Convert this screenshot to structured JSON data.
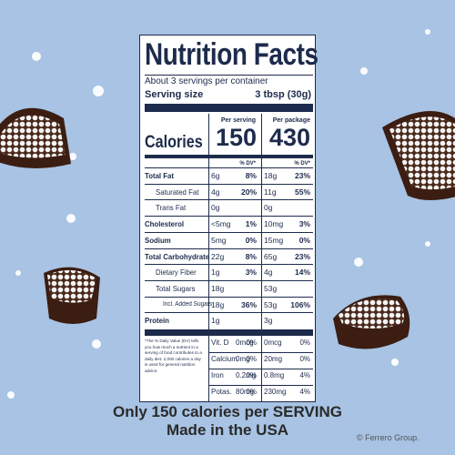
{
  "label": {
    "title": "Nutrition Facts",
    "servings": "About 3 servings per container",
    "serving_size_label": "Serving size",
    "serving_size": "3 tbsp (30g)",
    "per_serving": "Per serving",
    "per_package": "Per package",
    "calories_label": "Calories",
    "calories_serving": "150",
    "calories_package": "430",
    "dv_header": "% DV*",
    "rows": [
      {
        "name": "Total Fat",
        "serving": "6g",
        "serving_dv": "8%",
        "package": "18g",
        "package_dv": "23%",
        "items": [
          {
            "name": "Saturated Fat",
            "serving": "4g",
            "serving_dv": "20%",
            "package": "11g",
            "package_dv": "55%"
          },
          {
            "name": "Trans Fat",
            "serving": "0g",
            "serving_dv": null,
            "package": "0g",
            "package_dv": null
          }
        ]
      },
      {
        "name": "Cholesterol",
        "serving": "<5mg",
        "serving_dv": "1%",
        "package": "10mg",
        "package_dv": "3%"
      },
      {
        "name": "Sodium",
        "serving": "5mg",
        "serving_dv": "0%",
        "package": "15mg",
        "package_dv": "0%"
      },
      {
        "name": "Total Carbohydrate",
        "serving": "22g",
        "serving_dv": "8%",
        "package": "65g",
        "package_dv": "23%",
        "items": [
          {
            "name": "Dietary Fiber",
            "serving": "1g",
            "serving_dv": "3%",
            "package": "4g",
            "package_dv": "14%"
          },
          {
            "name": "Total Sugars",
            "serving": "18g",
            "serving_dv": null,
            "package": "53g",
            "package_dv": null,
            "items": [
              {
                "name": "Incl. Added Sugars",
                "serving": "18g",
                "serving_dv": "36%",
                "package": "53g",
                "package_dv": "106%"
              }
            ]
          }
        ]
      },
      {
        "name": "Protein",
        "serving": "1g",
        "serving_dv": null,
        "package": "3g",
        "package_dv": null
      }
    ],
    "footnote": "*The % Daily Value (DV) tells you how much a nutrient in a serving of food contributes to a daily diet. 2,000 calories a day is used for general nutrition advice.",
    "vitamins": [
      {
        "name": "Vit. D",
        "serving": "0mcg",
        "serving_dv": "0%",
        "package": "0mcg",
        "package_dv": "0%"
      },
      {
        "name": "Calcium",
        "serving": "0mg",
        "serving_dv": "0%",
        "package": "20mg",
        "package_dv": "0%"
      },
      {
        "name": "Iron",
        "serving": "0.2mg",
        "serving_dv": "0%",
        "package": "0.8mg",
        "package_dv": "4%"
      },
      {
        "name": "Potas.",
        "serving": "80mg",
        "serving_dv": "0%",
        "package": "230mg",
        "package_dv": "4%"
      }
    ]
  },
  "caption": {
    "line1": "Only 150 calories per SERVING",
    "line2": "Made in the USA"
  },
  "copyright": "© Ferrero Group."
}
